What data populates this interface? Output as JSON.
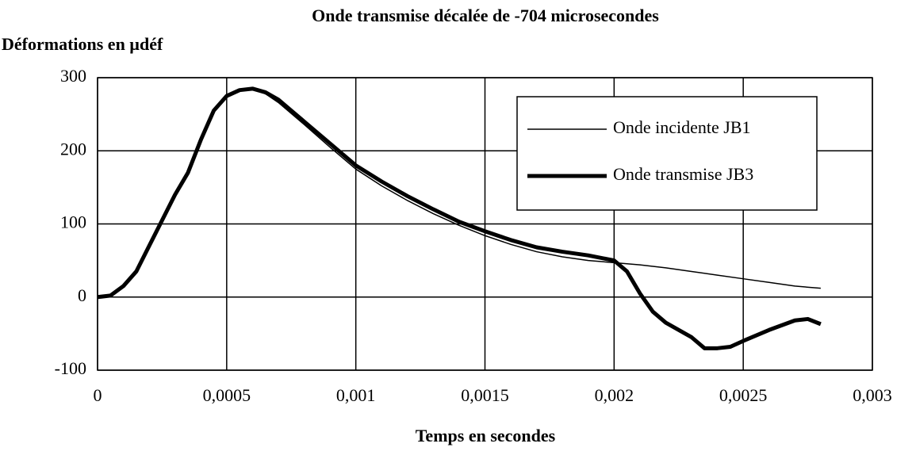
{
  "chart_data": {
    "type": "line",
    "title": "Onde transmise décalée de -704 microsecondes",
    "ylabel": "Déformations en µdéf",
    "xlabel": "Temps en secondes",
    "xlim": [
      0,
      0.003
    ],
    "ylim": [
      -100,
      300
    ],
    "xticks": [
      0,
      {
        "value": 0.0005,
        "label": "0,0005"
      },
      {
        "value": 0.001,
        "label": "0,001"
      },
      {
        "value": 0.0015,
        "label": "0,0015"
      },
      {
        "value": 0.002,
        "label": "0,002"
      },
      {
        "value": 0.0025,
        "label": "0,0025"
      },
      {
        "value": 0.003,
        "label": "0,003"
      }
    ],
    "yticks": [
      300,
      200,
      100,
      0,
      -100
    ],
    "grid": true,
    "legend": "upper right",
    "series": [
      {
        "name": "Onde incidente JB1",
        "color": "#000000",
        "width": 1.5,
        "x": [
          0,
          5e-05,
          0.0001,
          0.00015,
          0.0002,
          0.00025,
          0.0003,
          0.00035,
          0.0004,
          0.00045,
          0.0005,
          0.00055,
          0.0006,
          0.00065,
          0.0007,
          0.0008,
          0.0009,
          0.001,
          0.0011,
          0.0012,
          0.0013,
          0.0014,
          0.0015,
          0.0016,
          0.0017,
          0.0018,
          0.0019,
          0.002,
          0.0021,
          0.0022,
          0.0023,
          0.0024,
          0.0025,
          0.0026,
          0.0027,
          0.0028
        ],
        "values": [
          0,
          2,
          15,
          35,
          70,
          105,
          140,
          170,
          215,
          255,
          275,
          283,
          284,
          278,
          266,
          236,
          205,
          175,
          152,
          132,
          114,
          98,
          84,
          72,
          62,
          55,
          50,
          47,
          44,
          40,
          35,
          30,
          25,
          20,
          15,
          12
        ]
      },
      {
        "name": "Onde transmise JB3",
        "color": "#000000",
        "width": 5,
        "x": [
          0,
          5e-05,
          0.0001,
          0.00015,
          0.0002,
          0.00025,
          0.0003,
          0.00035,
          0.0004,
          0.00045,
          0.0005,
          0.00055,
          0.0006,
          0.00065,
          0.0007,
          0.00075,
          0.0008,
          0.0009,
          0.001,
          0.0011,
          0.0012,
          0.0013,
          0.0014,
          0.0015,
          0.0016,
          0.0017,
          0.0018,
          0.0019,
          0.002,
          0.00205,
          0.0021,
          0.00215,
          0.0022,
          0.0023,
          0.00235,
          0.0024,
          0.00245,
          0.0025,
          0.0026,
          0.0027,
          0.00275,
          0.0028
        ],
        "values": [
          0,
          2,
          15,
          35,
          70,
          105,
          140,
          170,
          215,
          255,
          275,
          283,
          285,
          280,
          270,
          255,
          240,
          210,
          180,
          158,
          138,
          120,
          103,
          90,
          78,
          68,
          62,
          57,
          50,
          35,
          5,
          -20,
          -35,
          -55,
          -70,
          -70,
          -68,
          -60,
          -45,
          -32,
          -30,
          -37
        ]
      }
    ]
  }
}
